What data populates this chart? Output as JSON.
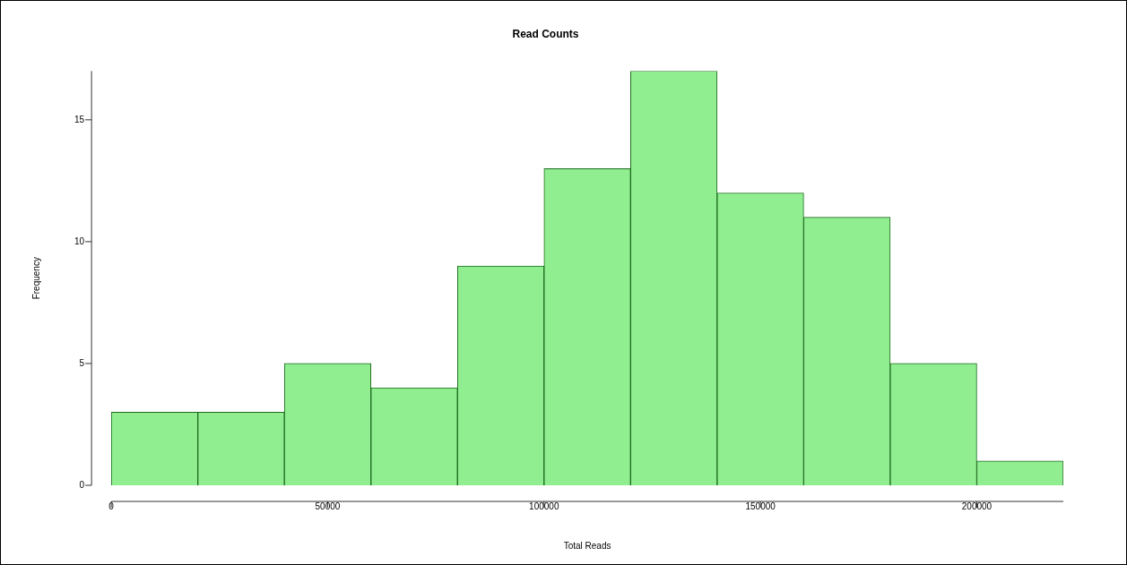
{
  "chart_data": {
    "type": "histogram",
    "title": "Read Counts",
    "xlabel": "Total Reads",
    "ylabel": "Frequency",
    "bins": [
      0,
      20000,
      40000,
      60000,
      80000,
      100000,
      120000,
      140000,
      160000,
      180000,
      200000,
      220000
    ],
    "values": [
      3,
      3,
      5,
      4,
      9,
      13,
      17,
      12,
      11,
      5,
      1
    ],
    "color": "#90ee90",
    "xlim": [
      0,
      220000
    ],
    "xticks": [
      0,
      50000,
      100000,
      150000,
      200000
    ],
    "ylim": [
      0,
      17
    ],
    "yticks": [
      0,
      5,
      10,
      15
    ],
    "grid": false,
    "legend": false
  }
}
